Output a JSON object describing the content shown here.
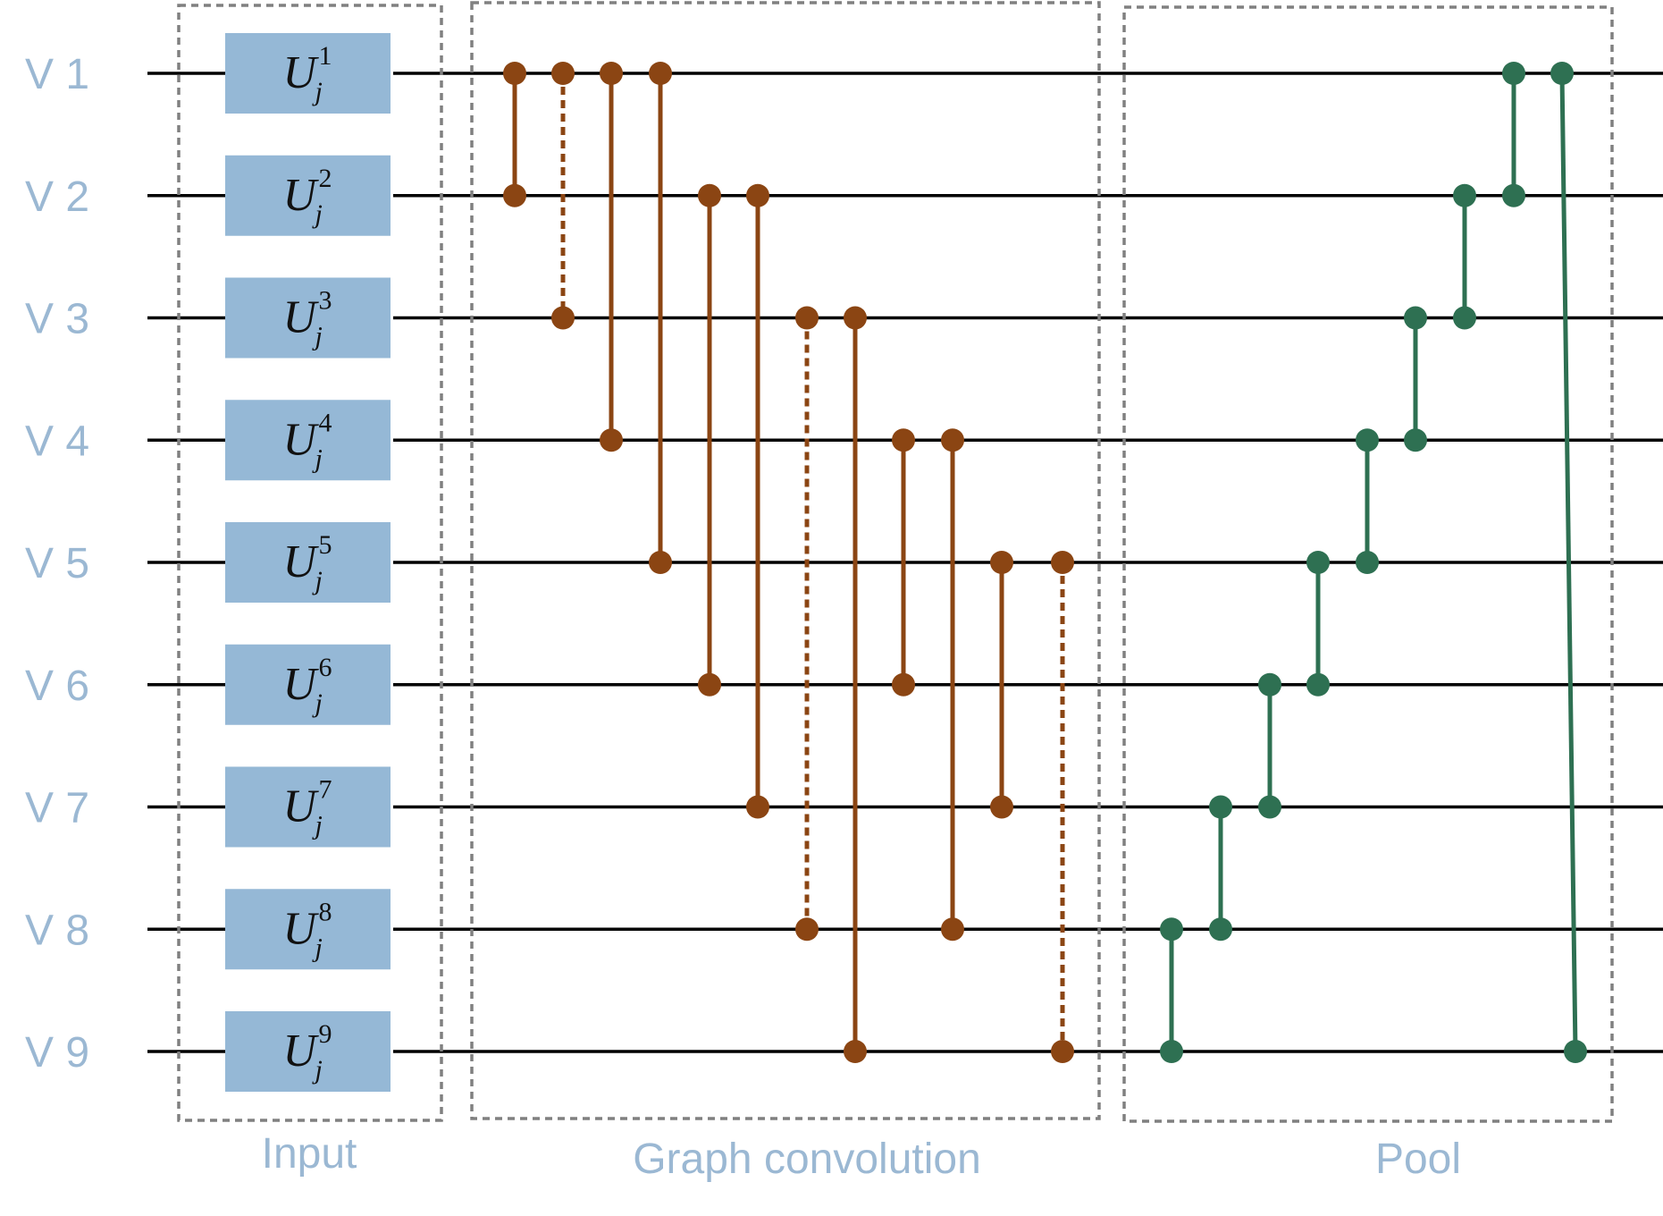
{
  "colors": {
    "wire": "#000000",
    "gate_fill": "#95b8d6",
    "label": "#9bb8d3",
    "conv": "#8b4513",
    "pool": "#2e7052",
    "box_border": "#808080"
  },
  "wires": [
    {
      "label": "V 1"
    },
    {
      "label": "V 2"
    },
    {
      "label": "V 3"
    },
    {
      "label": "V 4"
    },
    {
      "label": "V 5"
    },
    {
      "label": "V 6"
    },
    {
      "label": "V 7"
    },
    {
      "label": "V 8"
    },
    {
      "label": "V 9"
    }
  ],
  "gates": [
    {
      "symbol": "U",
      "sup": "1",
      "sub": "j"
    },
    {
      "symbol": "U",
      "sup": "2",
      "sub": "j"
    },
    {
      "symbol": "U",
      "sup": "3",
      "sub": "j"
    },
    {
      "symbol": "U",
      "sup": "4",
      "sub": "j"
    },
    {
      "symbol": "U",
      "sup": "5",
      "sub": "j"
    },
    {
      "symbol": "U",
      "sup": "6",
      "sub": "j"
    },
    {
      "symbol": "U",
      "sup": "7",
      "sub": "j"
    },
    {
      "symbol": "U",
      "sup": "8",
      "sub": "j"
    },
    {
      "symbol": "U",
      "sup": "9",
      "sub": "j"
    }
  ],
  "sections": {
    "input": "Input",
    "conv": "Graph convolution",
    "pool": "Pool"
  },
  "conv_connections": [
    {
      "from": 1,
      "to": 2,
      "style": "solid"
    },
    {
      "from": 1,
      "to": 3,
      "style": "dashed"
    },
    {
      "from": 1,
      "to": 4,
      "style": "solid"
    },
    {
      "from": 1,
      "to": 5,
      "style": "solid"
    },
    {
      "from": 2,
      "to": 6,
      "style": "solid"
    },
    {
      "from": 2,
      "to": 7,
      "style": "solid"
    },
    {
      "from": 3,
      "to": 8,
      "style": "dashed"
    },
    {
      "from": 3,
      "to": 9,
      "style": "solid"
    },
    {
      "from": 4,
      "to": 6,
      "style": "solid"
    },
    {
      "from": 4,
      "to": 8,
      "style": "solid"
    },
    {
      "from": 5,
      "to": 7,
      "style": "solid"
    },
    {
      "from": 5,
      "to": 9,
      "style": "dashed"
    }
  ],
  "pool_connections": [
    {
      "from": 8,
      "to": 9
    },
    {
      "from": 7,
      "to": 8
    },
    {
      "from": 6,
      "to": 7
    },
    {
      "from": 5,
      "to": 6
    },
    {
      "from": 4,
      "to": 5
    },
    {
      "from": 3,
      "to": 4
    },
    {
      "from": 2,
      "to": 3
    },
    {
      "from": 1,
      "to": 2
    },
    {
      "from": 1,
      "to": 9
    }
  ]
}
